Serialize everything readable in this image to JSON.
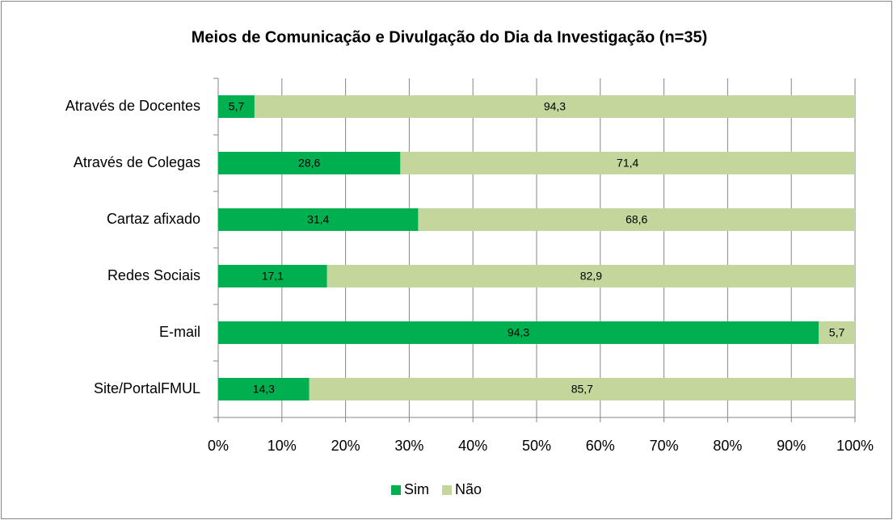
{
  "chart_data": {
    "type": "stacked-bar-horizontal",
    "title": "Meios de Comunicação e Divulgação do Dia da Investigação (n=35)",
    "categories": [
      "Através de Docentes",
      "Através de Colegas",
      "Cartaz afixado",
      "Redes Sociais",
      "E-mail",
      "Site/PortalFMUL"
    ],
    "series": [
      {
        "name": "Sim",
        "color": "#00b050",
        "values": [
          5.7,
          28.6,
          31.4,
          17.1,
          94.3,
          14.3
        ],
        "value_labels": [
          "5,7",
          "28,6",
          "31,4",
          "17,1",
          "94,3",
          "14,3"
        ]
      },
      {
        "name": "Não",
        "color": "#c3d69b",
        "values": [
          94.3,
          71.4,
          68.6,
          82.9,
          5.7,
          85.7
        ],
        "value_labels": [
          "94,3",
          "71,4",
          "68,6",
          "82,9",
          "5,7",
          "85,7"
        ]
      }
    ],
    "xlim": [
      0,
      100
    ],
    "xticks": [
      {
        "value": 0,
        "label": "0%"
      },
      {
        "value": 10,
        "label": "10%"
      },
      {
        "value": 20,
        "label": "20%"
      },
      {
        "value": 30,
        "label": "30%"
      },
      {
        "value": 40,
        "label": "40%"
      },
      {
        "value": 50,
        "label": "50%"
      },
      {
        "value": 60,
        "label": "60%"
      },
      {
        "value": 70,
        "label": "70%"
      },
      {
        "value": 80,
        "label": "80%"
      },
      {
        "value": 90,
        "label": "90%"
      },
      {
        "value": 100,
        "label": "100%"
      }
    ],
    "grid": true,
    "legend": "bottom"
  }
}
